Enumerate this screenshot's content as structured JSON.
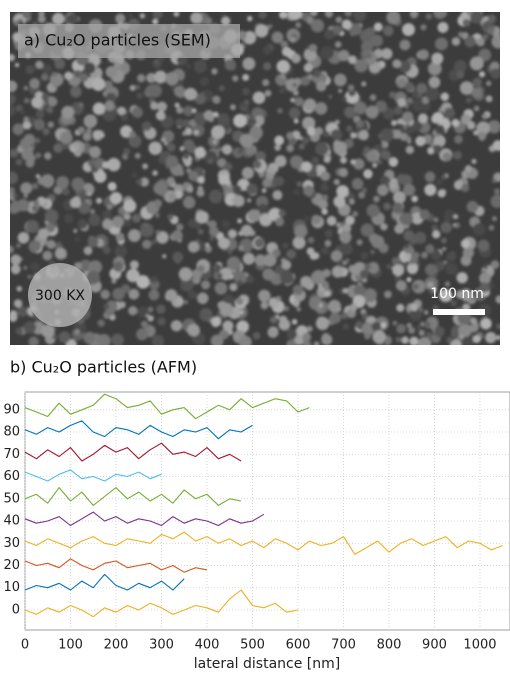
{
  "image_panel": {
    "label": "a) Cu₂O particles (SEM)",
    "magnification": "300 KX",
    "scale_bar": "100 nm"
  },
  "chart_data": {
    "type": "line",
    "title": "b) Cu₂O particles (AFM)",
    "x_label": "lateral distance [nm]",
    "xlim": [
      0,
      1066
    ],
    "ylim": [
      -9,
      98
    ],
    "xticks": [
      0,
      100,
      200,
      300,
      400,
      500,
      600,
      700,
      800,
      900,
      1000
    ],
    "yticks": [
      0,
      10,
      20,
      30,
      40,
      50,
      60,
      70,
      80,
      90
    ],
    "grid": true,
    "series": [
      {
        "color": "#77ac30",
        "x": [
          0,
          25,
          50,
          75,
          100,
          125,
          150,
          175,
          200,
          225,
          250,
          275,
          300,
          325,
          350,
          375,
          400,
          425,
          450,
          475,
          500,
          525,
          550,
          575,
          600,
          625
        ],
        "values": [
          91,
          89,
          87,
          93,
          88,
          90,
          92,
          97,
          95,
          91,
          92,
          94,
          88,
          90,
          91,
          86,
          89,
          92,
          90,
          95,
          91,
          93,
          95,
          94,
          89,
          91
        ]
      },
      {
        "color": "#0072bd",
        "x": [
          0,
          25,
          50,
          75,
          100,
          125,
          150,
          175,
          200,
          225,
          250,
          275,
          300,
          325,
          350,
          375,
          400,
          425,
          450,
          475,
          500
        ],
        "values": [
          81,
          79,
          82,
          80,
          83,
          85,
          80,
          78,
          82,
          81,
          79,
          83,
          80,
          78,
          81,
          80,
          82,
          77,
          81,
          80,
          83
        ]
      },
      {
        "color": "#a2142f",
        "x": [
          0,
          25,
          50,
          75,
          100,
          125,
          150,
          175,
          200,
          225,
          250,
          275,
          300,
          325,
          350,
          375,
          400,
          425,
          450,
          475
        ],
        "values": [
          71,
          68,
          72,
          69,
          73,
          67,
          70,
          74,
          71,
          73,
          68,
          72,
          75,
          70,
          71,
          69,
          73,
          68,
          70,
          67
        ]
      },
      {
        "color": "#4dbeee",
        "x": [
          0,
          25,
          50,
          75,
          100,
          125,
          150,
          175,
          200,
          225,
          250,
          275,
          300
        ],
        "values": [
          62,
          60,
          58,
          61,
          63,
          59,
          60,
          58,
          61,
          60,
          62,
          59,
          61
        ]
      },
      {
        "color": "#77ac30",
        "x": [
          0,
          25,
          50,
          75,
          100,
          125,
          150,
          175,
          200,
          225,
          250,
          275,
          300,
          325,
          350,
          375,
          400,
          425,
          450,
          475
        ],
        "values": [
          50,
          52,
          48,
          55,
          49,
          53,
          47,
          51,
          55,
          50,
          53,
          49,
          52,
          48,
          54,
          50,
          52,
          47,
          50,
          49
        ]
      },
      {
        "color": "#7e2f8e",
        "x": [
          0,
          25,
          50,
          75,
          100,
          125,
          150,
          175,
          200,
          225,
          250,
          275,
          300,
          325,
          350,
          375,
          400,
          425,
          450,
          475,
          500,
          525
        ],
        "values": [
          41,
          39,
          40,
          42,
          38,
          41,
          44,
          40,
          42,
          39,
          41,
          40,
          38,
          42,
          39,
          41,
          40,
          38,
          41,
          39,
          40,
          43
        ]
      },
      {
        "color": "#edb120",
        "x": [
          0,
          25,
          50,
          75,
          100,
          125,
          150,
          175,
          200,
          225,
          250,
          275,
          300,
          325,
          350,
          375,
          400,
          425,
          450,
          475,
          500,
          525,
          550,
          575,
          600,
          625,
          650,
          675,
          700,
          725,
          750,
          775,
          800,
          825,
          850,
          875,
          900,
          925,
          950,
          975,
          1000,
          1025,
          1050
        ],
        "values": [
          31,
          29,
          32,
          30,
          28,
          31,
          33,
          30,
          29,
          32,
          31,
          30,
          34,
          32,
          35,
          31,
          33,
          30,
          32,
          29,
          31,
          28,
          32,
          30,
          27,
          31,
          29,
          30,
          33,
          25,
          28,
          31,
          26,
          30,
          32,
          29,
          31,
          33,
          28,
          31,
          30,
          27,
          29
        ]
      },
      {
        "color": "#d95319",
        "x": [
          0,
          25,
          50,
          75,
          100,
          125,
          150,
          175,
          200,
          225,
          250,
          275,
          300,
          325,
          350,
          375,
          400
        ],
        "values": [
          22,
          20,
          21,
          19,
          23,
          20,
          18,
          21,
          22,
          19,
          20,
          21,
          18,
          20,
          17,
          19,
          18
        ]
      },
      {
        "color": "#0072bd",
        "x": [
          0,
          25,
          50,
          75,
          100,
          125,
          150,
          175,
          200,
          225,
          250,
          275,
          300,
          325,
          350
        ],
        "values": [
          9,
          11,
          10,
          12,
          9,
          13,
          10,
          16,
          11,
          9,
          12,
          10,
          13,
          9,
          14
        ]
      },
      {
        "color": "#edb120",
        "x": [
          0,
          25,
          50,
          75,
          100,
          125,
          150,
          175,
          200,
          225,
          250,
          275,
          300,
          325,
          350,
          375,
          400,
          425,
          450,
          475,
          500,
          525,
          550,
          575,
          600
        ],
        "values": [
          0,
          -2,
          1,
          -1,
          2,
          0,
          -3,
          1,
          -1,
          2,
          0,
          3,
          1,
          -2,
          0,
          2,
          1,
          -1,
          5,
          9,
          2,
          1,
          3,
          -1,
          0
        ]
      }
    ]
  }
}
